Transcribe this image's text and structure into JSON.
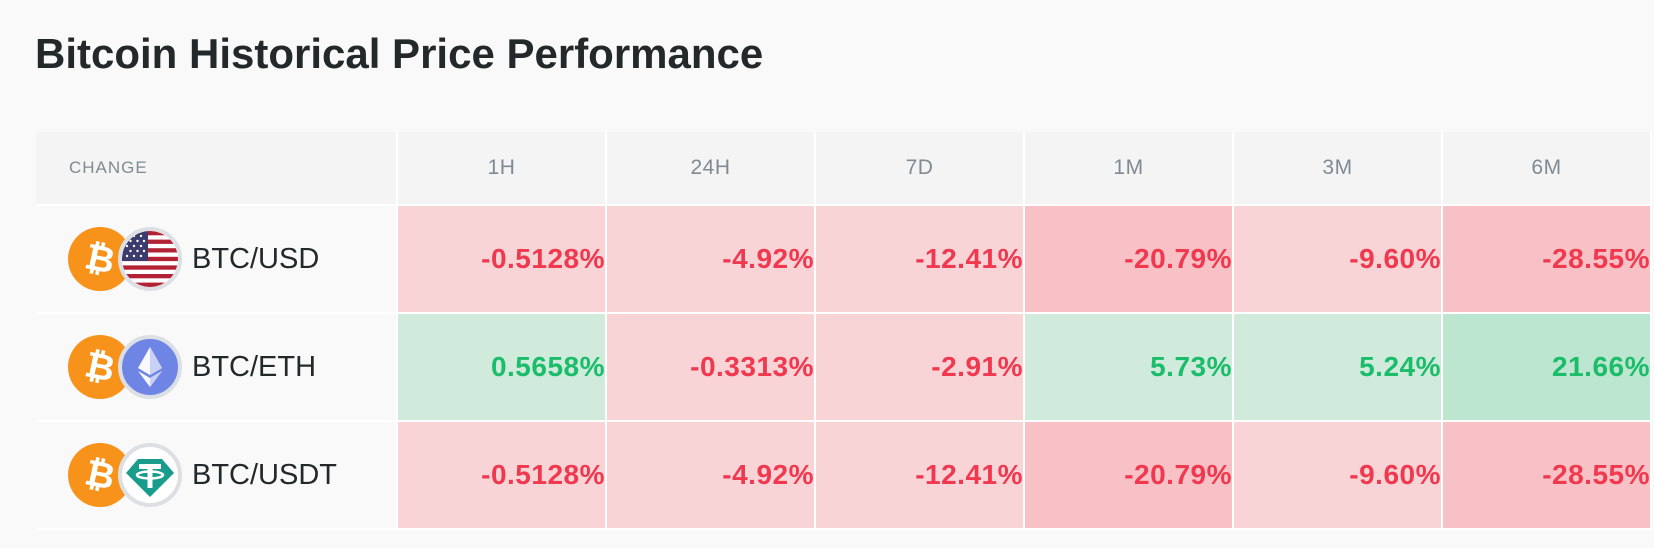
{
  "page": {
    "title": "Bitcoin Historical Price Performance"
  },
  "table": {
    "headers": [
      "CHANGE",
      "1H",
      "24H",
      "7D",
      "1M",
      "3M",
      "6M"
    ],
    "rows": [
      {
        "pair": "BTC/USD",
        "base_icon": "bitcoin-icon",
        "quote_icon": "us-flag-icon",
        "values": [
          "-0.5128%",
          "-4.92%",
          "-12.41%",
          "-20.79%",
          "-9.60%",
          "-28.55%"
        ]
      },
      {
        "pair": "BTC/ETH",
        "base_icon": "bitcoin-icon",
        "quote_icon": "ethereum-icon",
        "values": [
          "0.5658%",
          "-0.3313%",
          "-2.91%",
          "5.73%",
          "5.24%",
          "21.66%"
        ]
      },
      {
        "pair": "BTC/USDT",
        "base_icon": "bitcoin-icon",
        "quote_icon": "tether-icon",
        "values": [
          "-0.5128%",
          "-4.92%",
          "-12.41%",
          "-20.79%",
          "-9.60%",
          "-28.55%"
        ]
      }
    ]
  },
  "colors": {
    "negative_text": "#f0384f",
    "positive_text": "#1bbd6a",
    "negative_bg_light": "#f8d4d7",
    "negative_bg_strong": "#f7c1c5",
    "positive_bg_light": "#d0eadc",
    "positive_bg_strong": "#bce6cf",
    "bitcoin_orange": "#f7931a",
    "ethereum_blue": "#6f85e6",
    "tether_teal": "#1a9c8c"
  }
}
